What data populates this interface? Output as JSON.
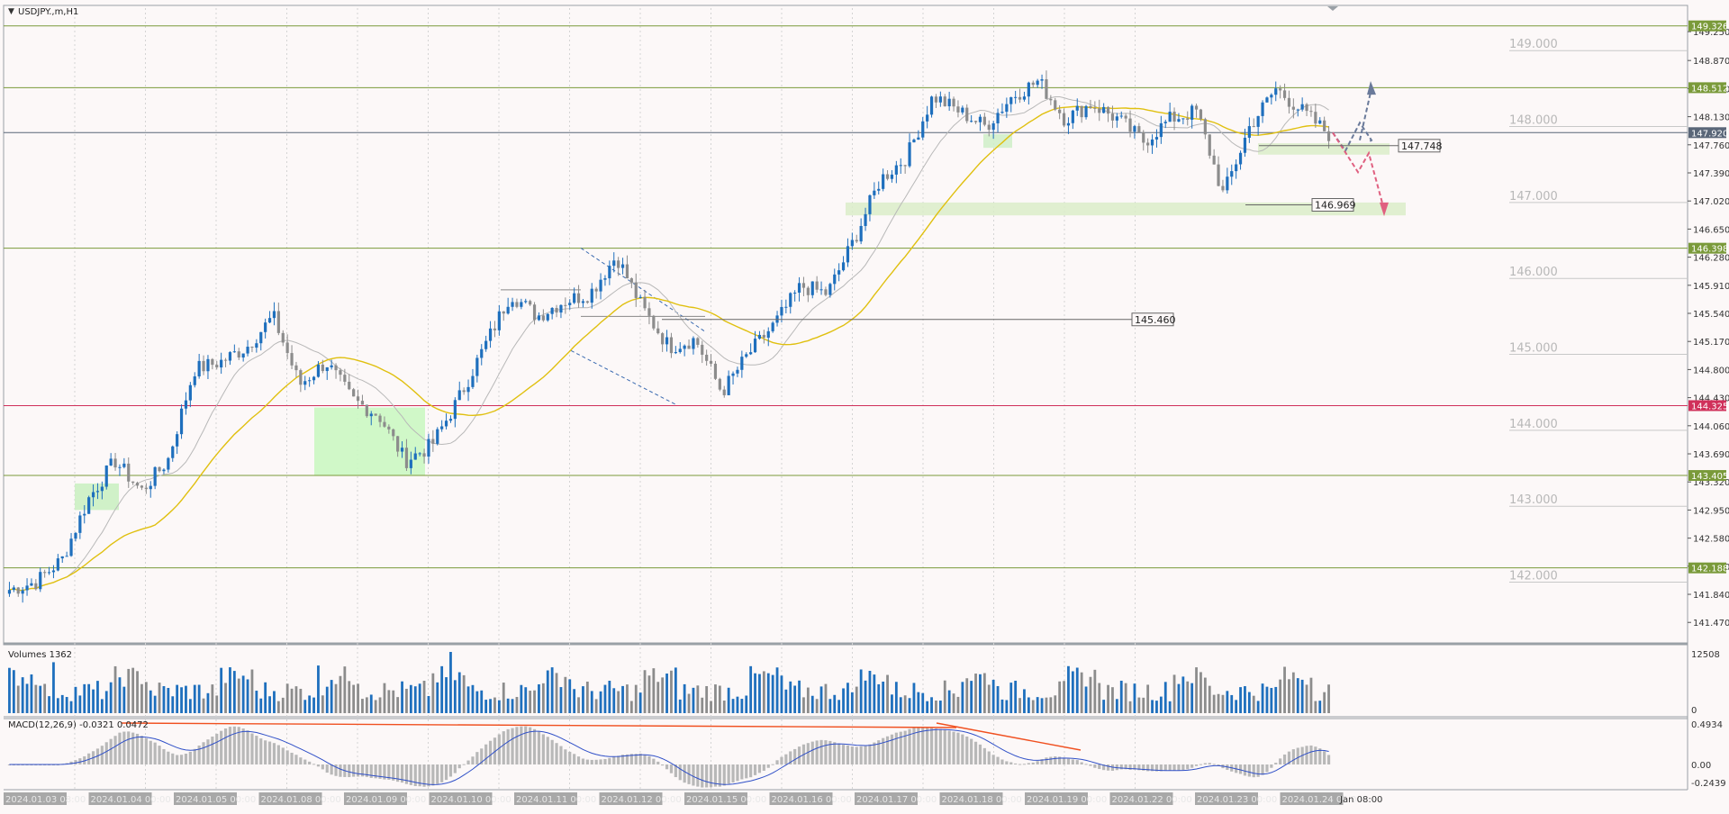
{
  "window": {
    "title": "USDJPY.,m,H1",
    "menu_icon": "triangle-down-icon"
  },
  "price_axis": {
    "labels": [
      "149.250",
      "148.870",
      "148.500",
      "148.130",
      "147.760",
      "147.390",
      "147.020",
      "146.650",
      "146.280",
      "145.910",
      "145.540",
      "145.170",
      "144.800",
      "144.430",
      "144.060",
      "143.690",
      "143.320",
      "142.950",
      "142.580",
      "142.210",
      "141.840",
      "141.470"
    ],
    "min": 141.2,
    "max": 149.56
  },
  "round_levels": [
    "149.000",
    "148.000",
    "147.000",
    "146.000",
    "145.000",
    "144.000",
    "143.000",
    "142.000"
  ],
  "horizontal_levels": [
    {
      "price": 149.326,
      "label": "149.326",
      "color": "#7a9a3a"
    },
    {
      "price": 148.512,
      "label": "148.512",
      "color": "#7a9a3a"
    },
    {
      "price": 147.92,
      "label": "147.920",
      "color": "#5a6678"
    },
    {
      "price": 146.398,
      "label": "146.398",
      "color": "#7a9a3a"
    },
    {
      "price": 144.325,
      "label": "144.325",
      "color": "#d0305a"
    },
    {
      "price": 143.405,
      "label": "143.405",
      "color": "#7a9a3a"
    },
    {
      "price": 142.188,
      "label": "142.188",
      "color": "#7a9a3a"
    }
  ],
  "annotations": {
    "level_147748": "147.748",
    "level_146969": "146.969",
    "level_145460": "145.460"
  },
  "volumes": {
    "title": "Volumes 1362",
    "axis_max": "12508",
    "axis_min": "0"
  },
  "macd": {
    "title": "MACD(12,26,9) -0.0321 0.0472",
    "axis_top": "0.4934",
    "axis_mid": "0.00",
    "axis_bottom": "-0.2439"
  },
  "time_axis": {
    "labels": [
      "2024.01.03 08:00",
      "2024.01.04 00:00",
      "2024.01.05 00:00",
      "2024.01.08 00:00",
      "2024.01.09 00:00",
      "2024.01.10 00:00",
      "2024.01.11 00:00",
      "2024.01.12 00:00",
      "2024.01.15 00:00",
      "2024.01.16 00:00",
      "2024.01.17 00:00",
      "2024.01.18 00:00",
      "2024.01.19 00:00",
      "2024.01.22 00:00",
      "2024.01.23 00:00",
      "2024.01.24 00:00"
    ],
    "last_label": "Jan 08:00"
  },
  "chart_data": {
    "type": "candlestick",
    "symbol": "USDJPY.,m",
    "timeframe": "H1",
    "start": "2024.01.03 08:00",
    "end": "2024.01.24 08:00",
    "approximate_close_path": [
      141.9,
      142.0,
      142.3,
      143.1,
      143.6,
      143.2,
      143.6,
      144.8,
      144.9,
      145.1,
      145.5,
      144.6,
      144.9,
      144.4,
      144.2,
      143.6,
      143.8,
      144.4,
      145.1,
      145.8,
      145.5,
      145.7,
      145.8,
      146.3,
      145.6,
      145.1,
      145.2,
      144.5,
      145.0,
      145.4,
      145.9,
      145.8,
      146.5,
      147.3,
      147.6,
      148.4,
      148.2,
      148.0,
      148.4,
      148.6,
      148.1,
      148.3,
      148.1,
      147.8,
      148.1,
      148.2,
      147.1,
      148.0,
      148.5,
      148.2,
      147.9
    ],
    "colors": {
      "bull": "#1e6fbd",
      "bear": "#8c8c8c",
      "ma_slow": "#e0c010",
      "ma_fast": "#b8b8b8",
      "macd_line": "#3050c8",
      "divergence": "#f05020",
      "zone": "#c8f0c0",
      "projection_up": "#6a7a9a",
      "projection_down": "#e06080"
    }
  }
}
